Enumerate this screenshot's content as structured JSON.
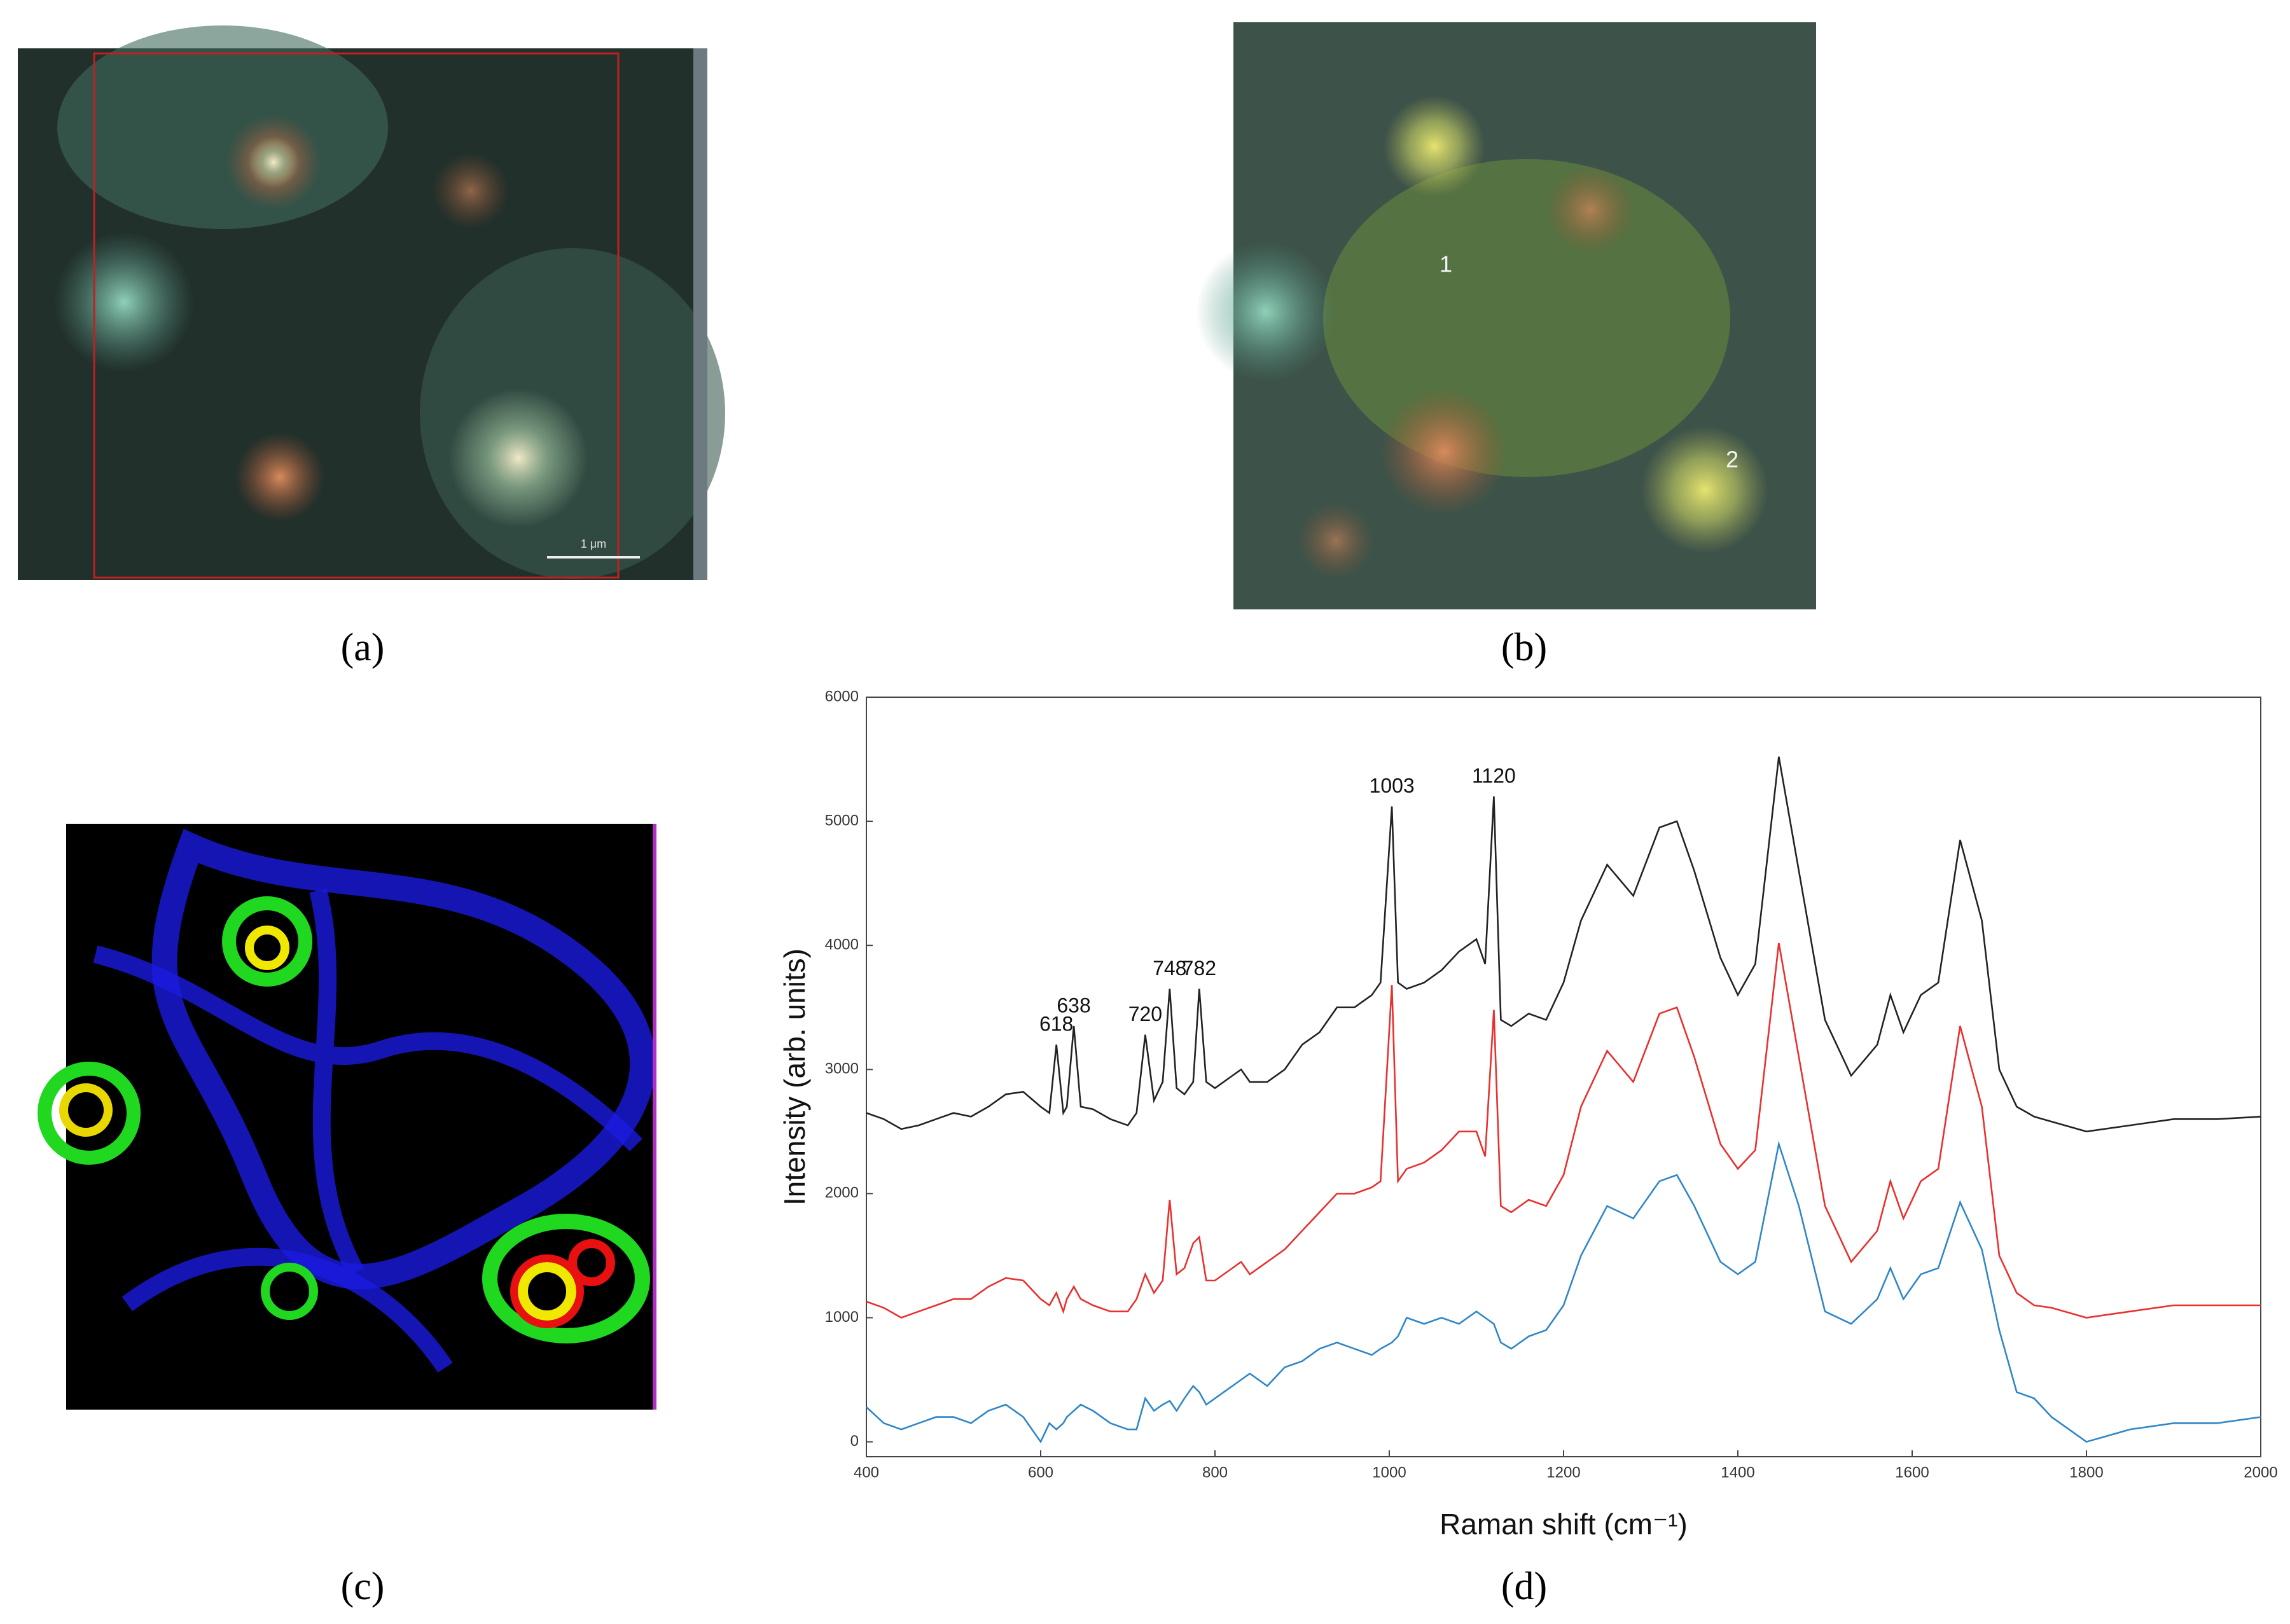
{
  "panels": {
    "a": {
      "label": "(a)",
      "scale_bar": "1 μm"
    },
    "b": {
      "label": "(b)",
      "points": [
        "1",
        "2"
      ]
    },
    "c": {
      "label": "(c)"
    },
    "d": {
      "label": "(d)"
    }
  },
  "chart_data": {
    "type": "line",
    "x_label": "Raman shift (cm⁻¹)",
    "y_label": "Intensity (arb. units)",
    "xlim": [
      400,
      2000
    ],
    "xticks": [
      400,
      600,
      800,
      1000,
      1200,
      1400,
      1600,
      1800,
      2000
    ],
    "ylim": [
      -120,
      6000
    ],
    "yticks": [
      0,
      1000,
      2000,
      3000,
      4000,
      5000,
      6000
    ],
    "grid": false,
    "peak_labels": [
      618,
      638,
      720,
      748,
      782,
      1003,
      1120
    ],
    "x": [
      400,
      420,
      440,
      460,
      480,
      500,
      520,
      540,
      560,
      580,
      600,
      610,
      618,
      626,
      630,
      638,
      646,
      660,
      680,
      700,
      710,
      720,
      730,
      740,
      748,
      756,
      765,
      775,
      782,
      790,
      800,
      820,
      830,
      840,
      860,
      880,
      900,
      920,
      940,
      960,
      980,
      990,
      1003,
      1010,
      1020,
      1040,
      1060,
      1080,
      1100,
      1110,
      1120,
      1128,
      1140,
      1160,
      1180,
      1200,
      1220,
      1250,
      1280,
      1310,
      1330,
      1350,
      1380,
      1400,
      1420,
      1447,
      1470,
      1500,
      1530,
      1560,
      1575,
      1590,
      1610,
      1630,
      1655,
      1680,
      1700,
      1720,
      1740,
      1760,
      1800,
      1850,
      1900,
      1950,
      2000
    ],
    "series": [
      {
        "color": "#222222",
        "values": [
          2650,
          2600,
          2520,
          2550,
          2600,
          2650,
          2620,
          2700,
          2800,
          2820,
          2700,
          2650,
          3200,
          2650,
          2700,
          3350,
          2700,
          2680,
          2600,
          2550,
          2650,
          3280,
          2750,
          2900,
          3650,
          2850,
          2800,
          2900,
          3650,
          2900,
          2850,
          2950,
          3000,
          2900,
          2900,
          3000,
          3200,
          3300,
          3500,
          3500,
          3600,
          3700,
          5120,
          3700,
          3650,
          3700,
          3800,
          3950,
          4050,
          3850,
          5200,
          3400,
          3350,
          3450,
          3400,
          3700,
          4200,
          4650,
          4400,
          4950,
          5000,
          4600,
          3900,
          3600,
          3850,
          5520,
          4600,
          3400,
          2950,
          3200,
          3600,
          3300,
          3600,
          3700,
          4850,
          4200,
          3000,
          2700,
          2620,
          2580,
          2500,
          2550,
          2600,
          2600,
          2620
        ]
      },
      {
        "color": "#e8302e",
        "values": [
          1130,
          1080,
          1000,
          1050,
          1100,
          1150,
          1150,
          1250,
          1320,
          1300,
          1150,
          1100,
          1200,
          1050,
          1150,
          1250,
          1150,
          1100,
          1050,
          1050,
          1150,
          1350,
          1200,
          1300,
          1950,
          1350,
          1400,
          1600,
          1650,
          1300,
          1300,
          1400,
          1450,
          1350,
          1450,
          1550,
          1700,
          1850,
          2000,
          2000,
          2050,
          2100,
          3680,
          2100,
          2200,
          2250,
          2350,
          2500,
          2500,
          2300,
          3480,
          1900,
          1850,
          1950,
          1900,
          2150,
          2700,
          3150,
          2900,
          3450,
          3500,
          3100,
          2400,
          2200,
          2350,
          4020,
          3100,
          1900,
          1450,
          1700,
          2100,
          1800,
          2100,
          2200,
          3350,
          2700,
          1500,
          1200,
          1100,
          1080,
          1000,
          1050,
          1100,
          1100,
          1100
        ]
      },
      {
        "color": "#2f86c8",
        "values": [
          280,
          150,
          100,
          150,
          200,
          200,
          150,
          250,
          300,
          200,
          0,
          150,
          100,
          150,
          200,
          250,
          300,
          250,
          150,
          100,
          100,
          350,
          250,
          300,
          330,
          250,
          350,
          450,
          400,
          300,
          350,
          450,
          500,
          550,
          450,
          600,
          650,
          750,
          800,
          750,
          700,
          750,
          800,
          850,
          1000,
          950,
          1000,
          950,
          1050,
          1000,
          950,
          800,
          750,
          850,
          900,
          1100,
          1500,
          1900,
          1800,
          2100,
          2150,
          1900,
          1450,
          1350,
          1450,
          2400,
          1900,
          1050,
          950,
          1150,
          1400,
          1150,
          1350,
          1400,
          1930,
          1550,
          900,
          400,
          350,
          200,
          0,
          100,
          150,
          150,
          200
        ]
      }
    ]
  }
}
